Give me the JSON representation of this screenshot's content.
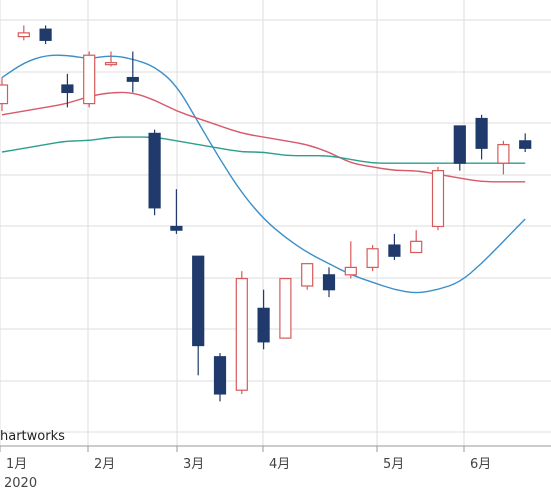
{
  "watermark": "hartworks",
  "year_label": "2020",
  "colors": {
    "up": "#d65a5a",
    "down": "#1f3a6b",
    "ma_short": "#3b8fc9",
    "ma_mid": "#d65a6a",
    "ma_long": "#2e9e8e",
    "grid": "#dddddd",
    "axis": "#999999"
  },
  "chart_data": {
    "type": "candlestick",
    "x_tick_labels": [
      "1月",
      "2月",
      "3月",
      "4月",
      "5月",
      "6月"
    ],
    "grid": true,
    "candles": [
      {
        "date": "2020-01-03",
        "open": 95,
        "close": 100,
        "high": 102,
        "low": 93
      },
      {
        "date": "2020-01-10",
        "open": 113,
        "close": 114,
        "high": 116,
        "low": 112
      },
      {
        "date": "2020-01-17",
        "open": 115,
        "close": 112,
        "high": 116,
        "low": 111
      },
      {
        "date": "2020-01-24",
        "open": 100,
        "close": 98,
        "high": 103,
        "low": 94
      },
      {
        "date": "2020-01-31",
        "open": 95,
        "close": 108,
        "high": 109,
        "low": 94
      },
      {
        "date": "2020-02-07",
        "open": 106,
        "close": 106,
        "high": 109,
        "low": 105
      },
      {
        "date": "2020-02-14",
        "open": 102,
        "close": 101,
        "high": 109,
        "low": 98
      },
      {
        "date": "2020-02-21",
        "open": 87,
        "close": 67,
        "high": 88,
        "low": 65
      },
      {
        "date": "2020-02-28",
        "open": 62,
        "close": 61,
        "high": 72,
        "low": 60
      },
      {
        "date": "2020-03-06",
        "open": 54,
        "close": 30,
        "high": 54,
        "low": 22
      },
      {
        "date": "2020-03-13",
        "open": 27,
        "close": 17,
        "high": 28,
        "low": 15
      },
      {
        "date": "2020-03-20",
        "open": 18,
        "close": 48,
        "high": 50,
        "low": 17
      },
      {
        "date": "2020-03-27",
        "open": 40,
        "close": 31,
        "high": 45,
        "low": 29
      },
      {
        "date": "2020-04-03",
        "open": 32,
        "close": 48,
        "high": 48,
        "low": 32
      },
      {
        "date": "2020-04-10",
        "open": 46,
        "close": 52,
        "high": 52,
        "low": 45
      },
      {
        "date": "2020-04-17",
        "open": 49,
        "close": 45,
        "high": 51,
        "low": 43
      },
      {
        "date": "2020-04-24",
        "open": 49,
        "close": 51,
        "high": 58,
        "low": 48
      },
      {
        "date": "2020-05-01",
        "open": 51,
        "close": 56,
        "high": 57,
        "low": 50
      },
      {
        "date": "2020-05-08",
        "open": 57,
        "close": 54,
        "high": 60,
        "low": 53
      },
      {
        "date": "2020-05-15",
        "open": 55,
        "close": 58,
        "high": 61,
        "low": 55
      },
      {
        "date": "2020-05-22",
        "open": 62,
        "close": 77,
        "high": 78,
        "low": 61
      },
      {
        "date": "2020-05-29",
        "open": 89,
        "close": 79,
        "high": 89,
        "low": 77
      },
      {
        "date": "2020-06-05",
        "open": 91,
        "close": 83,
        "high": 92,
        "low": 80
      },
      {
        "date": "2020-06-12",
        "open": 79,
        "close": 84,
        "high": 85,
        "low": 76
      },
      {
        "date": "2020-06-19",
        "open": 85,
        "close": 83,
        "high": 87,
        "low": 82
      }
    ],
    "moving_averages": [
      {
        "color_key": "ma_short",
        "values": [
          102,
          106,
          108,
          108,
          107,
          108,
          107,
          105,
          100,
          90,
          80,
          71,
          64,
          59,
          55,
          52,
          49,
          47,
          45,
          44,
          45,
          47,
          52,
          58,
          64
        ]
      },
      {
        "color_key": "ma_mid",
        "values": [
          92,
          93,
          94,
          95,
          97,
          98,
          98,
          96,
          93,
          91,
          89,
          87,
          86,
          85,
          84,
          82,
          79,
          78,
          77,
          77,
          76,
          75,
          74,
          74,
          74
        ]
      },
      {
        "color_key": "ma_long",
        "values": [
          82,
          83,
          84,
          85,
          85,
          86,
          86,
          86,
          85,
          84,
          83,
          82,
          82,
          81,
          81,
          81,
          80,
          79,
          79,
          79,
          79,
          79,
          79,
          79,
          79
        ]
      }
    ]
  }
}
